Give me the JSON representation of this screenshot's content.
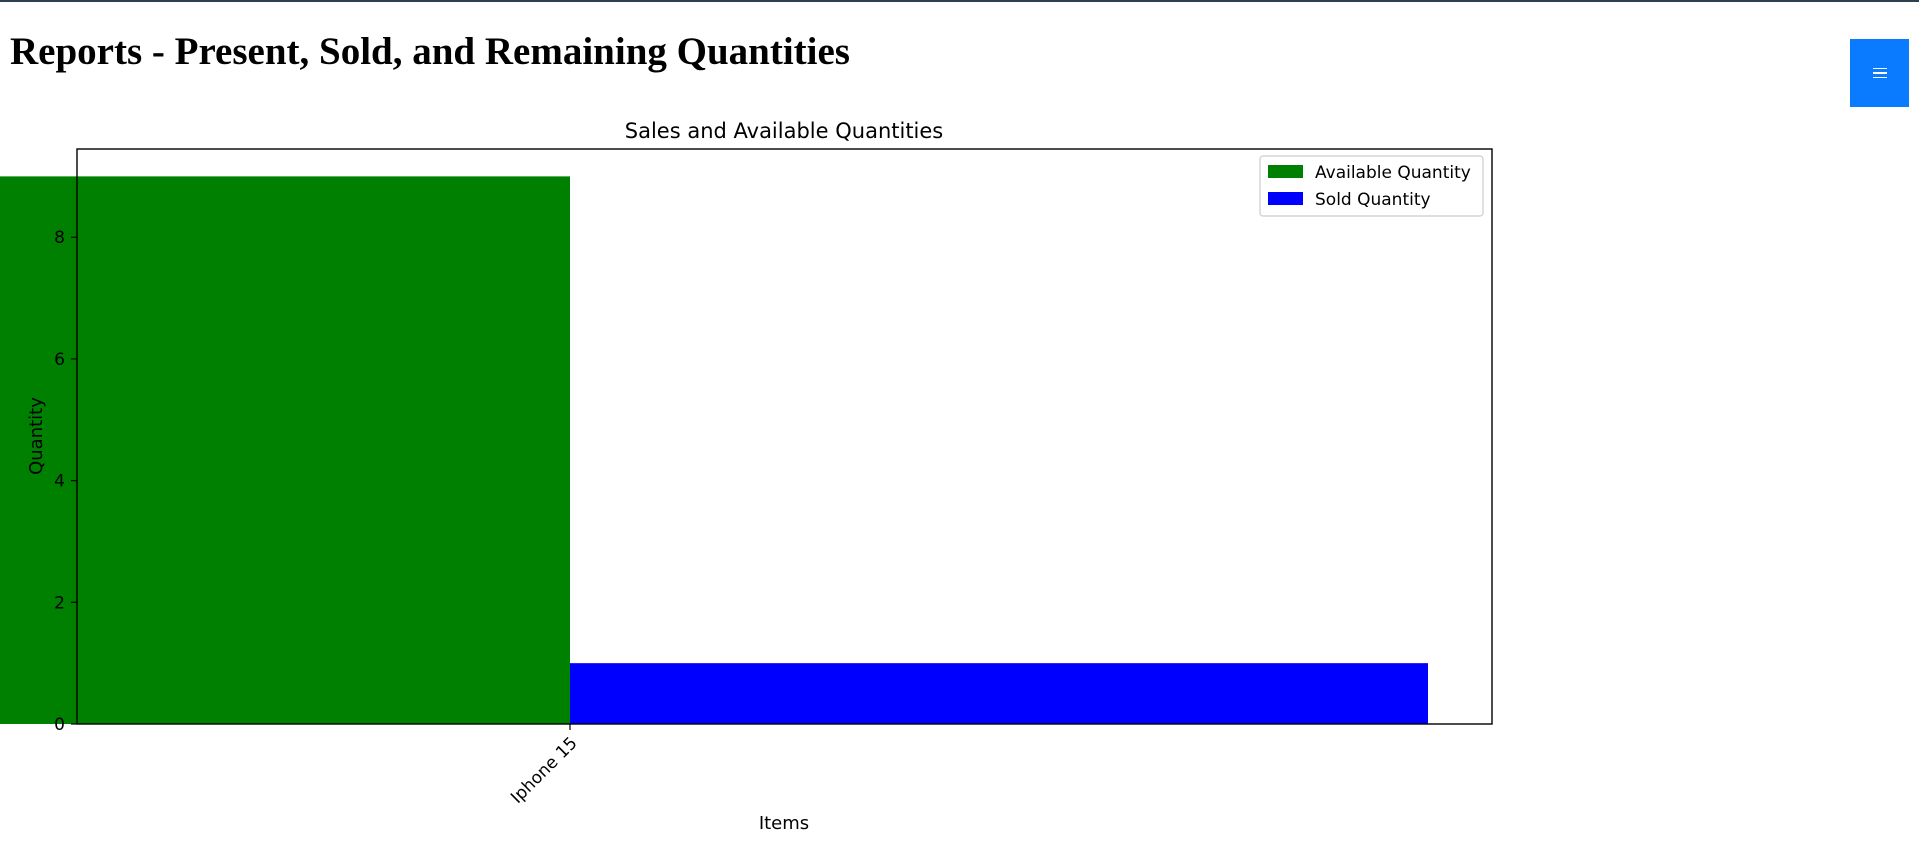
{
  "page": {
    "title": "Reports - Present, Sold, and Remaining Quantities"
  },
  "menu_button": {
    "icon": "hamburger-icon",
    "color": "#0a7bff"
  },
  "chart_data": {
    "type": "bar",
    "title": "Sales and Available Quantities",
    "xlabel": "Items",
    "ylabel": "Quantity",
    "categories": [
      "Iphone 15"
    ],
    "series": [
      {
        "name": "Available Quantity",
        "values": [
          9
        ],
        "color": "#008000"
      },
      {
        "name": "Sold Quantity",
        "values": [
          1
        ],
        "color": "#0000ff"
      }
    ],
    "ylim": [
      0,
      9.45
    ],
    "yticks": [
      "0",
      "2",
      "4",
      "6",
      "8"
    ],
    "legend": "top-right",
    "grid": false
  }
}
